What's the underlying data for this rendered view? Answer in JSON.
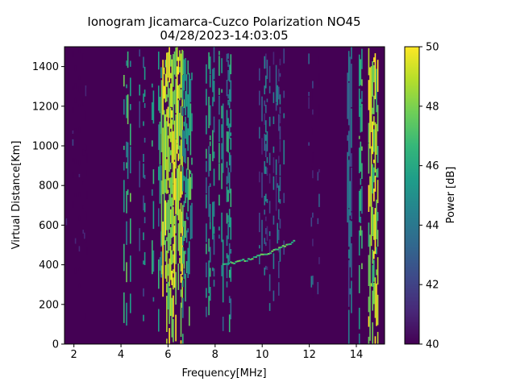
{
  "chart_data": {
    "type": "heatmap",
    "title": "Ionogram Jicamarca-Cuzco Polarization NO45",
    "subtitle": "04/28/2023-14:03:05",
    "xlabel": "Frequency[MHz]",
    "ylabel": "Virtual Distance[Km]",
    "xlim": [
      1.6,
      15.2
    ],
    "ylim": [
      0,
      1500
    ],
    "xticks": [
      2,
      4,
      6,
      8,
      10,
      12,
      14
    ],
    "yticks": [
      0,
      200,
      400,
      600,
      800,
      1000,
      1200,
      1400
    ],
    "colorbar": {
      "label": "Power [dB]",
      "range": [
        40,
        50
      ],
      "ticks": [
        40,
        42,
        44,
        46,
        48,
        50
      ],
      "colormap": "viridis"
    },
    "grid": false,
    "bands": [
      {
        "f_min": 1.6,
        "f_max": 2.6,
        "power_db": 42,
        "density": 0.08
      },
      {
        "f_min": 4.1,
        "f_max": 4.4,
        "power_db": 48,
        "density": 0.45
      },
      {
        "f_min": 4.6,
        "f_max": 5.0,
        "power_db": 46,
        "density": 0.25
      },
      {
        "f_min": 5.3,
        "f_max": 5.7,
        "power_db": 47,
        "density": 0.4
      },
      {
        "f_min": 5.7,
        "f_max": 6.6,
        "power_db": 50,
        "density": 0.85
      },
      {
        "f_min": 6.6,
        "f_max": 7.0,
        "power_db": 48,
        "density": 0.55
      },
      {
        "f_min": 7.6,
        "f_max": 8.8,
        "power_db": 47,
        "density": 0.45
      },
      {
        "f_min": 9.8,
        "f_max": 10.9,
        "power_db": 45,
        "density": 0.3
      },
      {
        "f_min": 11.9,
        "f_max": 12.7,
        "power_db": 44,
        "density": 0.12
      },
      {
        "f_min": 13.6,
        "f_max": 13.8,
        "power_db": 45,
        "density": 0.9
      },
      {
        "f_min": 14.1,
        "f_max": 14.3,
        "power_db": 48,
        "density": 0.6
      },
      {
        "f_min": 14.5,
        "f_max": 14.9,
        "power_db": 50,
        "density": 0.65
      }
    ],
    "echo_trace": {
      "f_start": 8.3,
      "f_end": 11.3,
      "h_start": 410,
      "h_end": 520,
      "power_db": 46
    }
  },
  "colors": {
    "viridis": [
      "#440154",
      "#482878",
      "#3e4989",
      "#31688e",
      "#26828e",
      "#1f9e89",
      "#35b779",
      "#6ece58",
      "#b5de2b",
      "#fde725"
    ]
  }
}
